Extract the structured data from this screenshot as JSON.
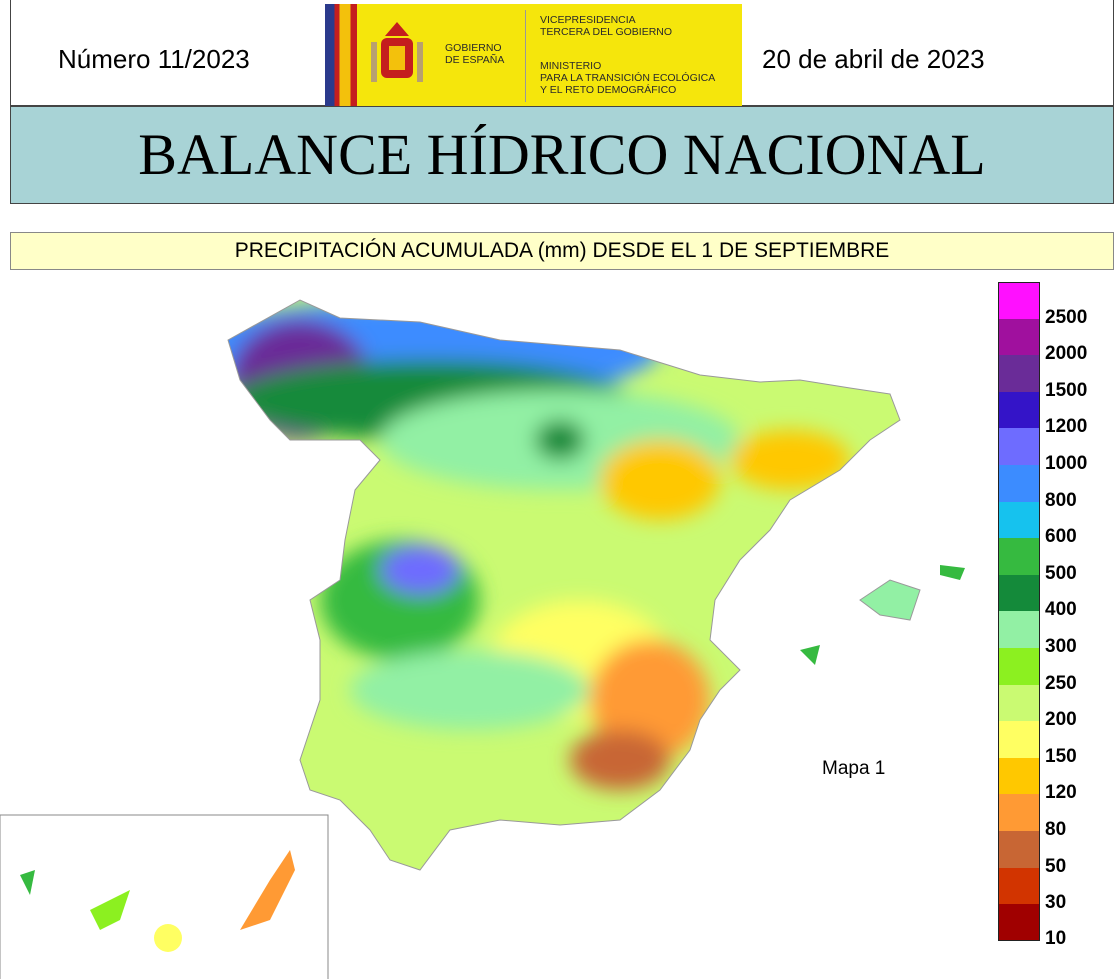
{
  "header": {
    "number": "Número 11/2023",
    "date": "20 de abril de 2023",
    "logo_left": [
      "GOBIERNO",
      "DE ESPAÑA"
    ],
    "logo_top": [
      "VICEPRESIDENCIA",
      "TERCERA DEL GOBIERNO"
    ],
    "logo_bottom": [
      "MINISTERIO",
      "PARA LA TRANSICIÓN ECOLÓGICA",
      "Y EL RETO DEMOGRÁFICO"
    ]
  },
  "title": "BALANCE HÍDRICO NACIONAL",
  "subtitle": "PRECIPITACIÓN ACUMULADA (mm) DESDE EL 1 DE SEPTIEMBRE",
  "map_label": "Mapa 1",
  "legend": [
    {
      "label": "2500",
      "color": "#ff10ff"
    },
    {
      "label": "2000",
      "color": "#a0109e"
    },
    {
      "label": "1500",
      "color": "#6a2c98"
    },
    {
      "label": "1200",
      "color": "#3414c8"
    },
    {
      "label": "1000",
      "color": "#6e6cff"
    },
    {
      "label": "800",
      "color": "#3c8cff"
    },
    {
      "label": "600",
      "color": "#16c2ee"
    },
    {
      "label": "500",
      "color": "#36ba40"
    },
    {
      "label": "400",
      "color": "#148a3a"
    },
    {
      "label": "300",
      "color": "#92f0a4"
    },
    {
      "label": "250",
      "color": "#8cf020"
    },
    {
      "label": "200",
      "color": "#cafa72"
    },
    {
      "label": "150",
      "color": "#ffff62"
    },
    {
      "label": "120",
      "color": "#ffc800"
    },
    {
      "label": "80",
      "color": "#ff9a34"
    },
    {
      "label": "50",
      "color": "#c86634"
    },
    {
      "label": "30",
      "color": "#d23400"
    },
    {
      "label": "10",
      "color": "#a00000"
    }
  ]
}
